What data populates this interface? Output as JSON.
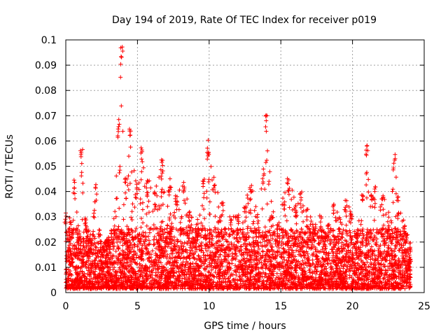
{
  "chart_data": {
    "type": "scatter",
    "title": "Day 194 of 2019, Rate Of TEC Index for receiver p019",
    "xlabel": "GPS time / hours",
    "ylabel": "ROTI / TECUs",
    "xlim": [
      0,
      25
    ],
    "ylim": [
      0,
      0.1
    ],
    "x_ticks": [
      "0",
      "5",
      "10",
      "15",
      "20",
      "25"
    ],
    "y_ticks": [
      "0",
      "0.01",
      "0.02",
      "0.03",
      "0.04",
      "0.05",
      "0.06",
      "0.07",
      "0.08",
      "0.09",
      "0.1"
    ],
    "grid": true,
    "marker": "+",
    "series_color": "#ff0000",
    "envelope": [
      [
        0.0,
        0.032
      ],
      [
        0.3,
        0.03
      ],
      [
        0.6,
        0.045
      ],
      [
        0.9,
        0.025
      ],
      [
        1.1,
        0.057
      ],
      [
        1.4,
        0.03
      ],
      [
        1.7,
        0.022
      ],
      [
        2.1,
        0.043
      ],
      [
        2.5,
        0.018
      ],
      [
        3.0,
        0.022
      ],
      [
        3.4,
        0.03
      ],
      [
        3.7,
        0.069
      ],
      [
        3.9,
        0.098
      ],
      [
        4.2,
        0.045
      ],
      [
        4.5,
        0.065
      ],
      [
        4.9,
        0.045
      ],
      [
        5.3,
        0.059
      ],
      [
        5.7,
        0.046
      ],
      [
        6.2,
        0.04
      ],
      [
        6.7,
        0.053
      ],
      [
        7.2,
        0.046
      ],
      [
        7.7,
        0.04
      ],
      [
        8.2,
        0.044
      ],
      [
        8.7,
        0.032
      ],
      [
        9.2,
        0.03
      ],
      [
        9.6,
        0.045
      ],
      [
        9.9,
        0.061
      ],
      [
        10.4,
        0.046
      ],
      [
        10.9,
        0.036
      ],
      [
        11.5,
        0.032
      ],
      [
        12.0,
        0.031
      ],
      [
        12.5,
        0.036
      ],
      [
        12.9,
        0.045
      ],
      [
        13.4,
        0.031
      ],
      [
        13.8,
        0.05
      ],
      [
        14.0,
        0.071
      ],
      [
        14.4,
        0.034
      ],
      [
        14.8,
        0.028
      ],
      [
        15.2,
        0.04
      ],
      [
        15.5,
        0.046
      ],
      [
        16.0,
        0.038
      ],
      [
        16.4,
        0.041
      ],
      [
        16.8,
        0.034
      ],
      [
        17.3,
        0.028
      ],
      [
        17.8,
        0.031
      ],
      [
        18.3,
        0.028
      ],
      [
        18.7,
        0.035
      ],
      [
        19.1,
        0.03
      ],
      [
        19.5,
        0.038
      ],
      [
        19.9,
        0.032
      ],
      [
        20.3,
        0.025
      ],
      [
        20.7,
        0.04
      ],
      [
        21.0,
        0.06
      ],
      [
        21.3,
        0.04
      ],
      [
        21.6,
        0.043
      ],
      [
        22.1,
        0.04
      ],
      [
        22.5,
        0.033
      ],
      [
        22.9,
        0.055
      ],
      [
        23.2,
        0.038
      ],
      [
        23.6,
        0.03
      ],
      [
        24.0,
        0.02
      ]
    ]
  }
}
